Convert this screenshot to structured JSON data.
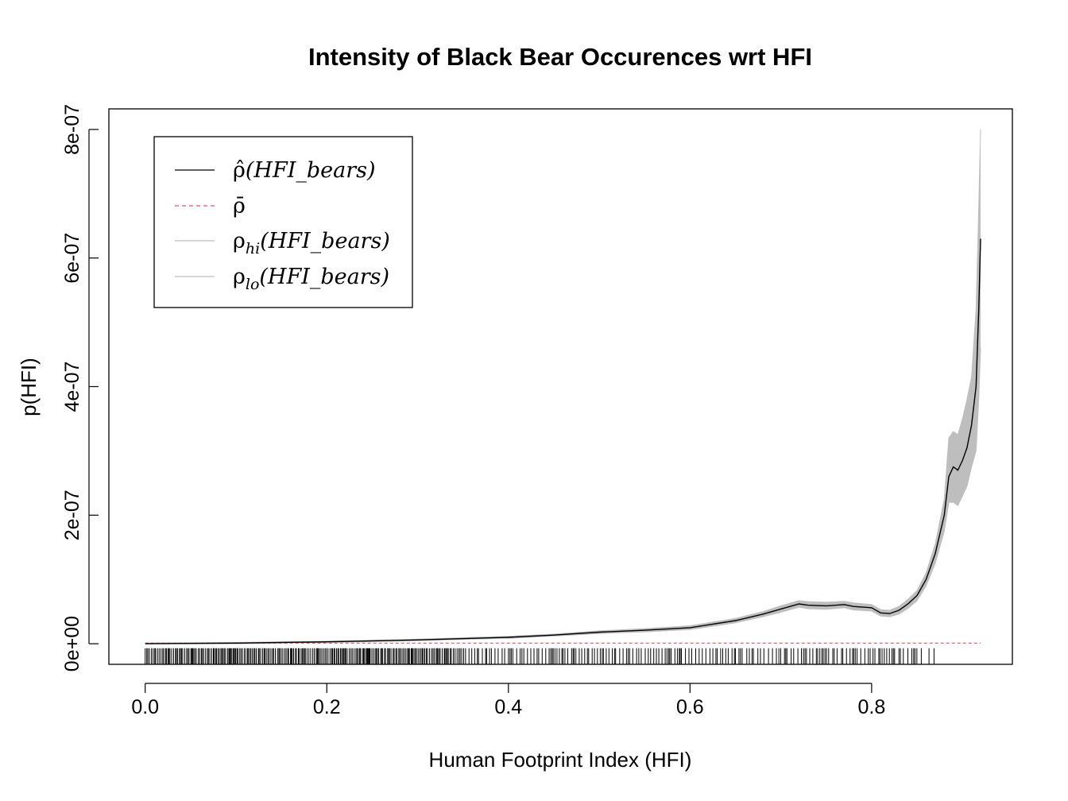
{
  "chart_data": {
    "type": "line",
    "title": "Intensity of Black Bear Occurences wrt HFI",
    "xlabel": "Human Footprint Index (HFI)",
    "ylabel": "p(HFI)",
    "xlim": [
      -0.04,
      0.955
    ],
    "ylim": [
      -3.2e-08,
      8.32e-07
    ],
    "x_ticks": [
      0.0,
      0.2,
      0.4,
      0.6,
      0.8
    ],
    "x_tick_labels": [
      "0.0",
      "0.2",
      "0.4",
      "0.6",
      "0.8"
    ],
    "y_ticks": [
      0,
      2e-07,
      4e-07,
      6e-07,
      8e-07
    ],
    "y_tick_labels": [
      "0e+00",
      "2e-07",
      "4e-07",
      "6e-07",
      "8e-07"
    ],
    "grid": false,
    "legend_position": "top-left",
    "legend": [
      {
        "base": "ρ̂",
        "sub": "",
        "arg": "(HFI_bears)",
        "style": "solid",
        "color": "#000000"
      },
      {
        "base": "ρ̄",
        "sub": "",
        "arg": "",
        "style": "dashed",
        "color": "#DF536B"
      },
      {
        "base": "ρ",
        "sub": "hi",
        "arg": "(HFI_bears)",
        "style": "solid",
        "color": "#BEBEBE"
      },
      {
        "base": "ρ",
        "sub": "lo",
        "arg": "(HFI_bears)",
        "style": "solid",
        "color": "#BEBEBE"
      }
    ],
    "series": [
      {
        "name": "ρ̂(HFI_bears)",
        "color": "#000000",
        "x": [
          0.0,
          0.1,
          0.2,
          0.3,
          0.4,
          0.45,
          0.5,
          0.55,
          0.6,
          0.65,
          0.68,
          0.7,
          0.72,
          0.73,
          0.75,
          0.77,
          0.78,
          0.8,
          0.81,
          0.82,
          0.83,
          0.84,
          0.85,
          0.86,
          0.87,
          0.88,
          0.885,
          0.89,
          0.895,
          0.9,
          0.905,
          0.91,
          0.915,
          0.918,
          0.92
        ],
        "y": [
          0,
          1e-09,
          3e-09,
          6e-09,
          1e-08,
          1.35e-08,
          1.8e-08,
          2.1e-08,
          2.5e-08,
          3.6e-08,
          4.6e-08,
          5.4e-08,
          6.2e-08,
          6e-08,
          5.9e-08,
          6.1e-08,
          5.8e-08,
          5.6e-08,
          4.8e-08,
          4.7e-08,
          5.2e-08,
          6.2e-08,
          7.5e-08,
          1e-07,
          1.4e-07,
          2e-07,
          2.6e-07,
          2.75e-07,
          2.7e-07,
          2.85e-07,
          3.05e-07,
          3.4e-07,
          4e-07,
          5.2e-07,
          6.3e-07
        ]
      },
      {
        "name": "ρ_hi(HFI_bears)",
        "color": "#BEBEBE",
        "x": [
          0.0,
          0.1,
          0.2,
          0.3,
          0.4,
          0.45,
          0.5,
          0.55,
          0.6,
          0.65,
          0.68,
          0.7,
          0.72,
          0.73,
          0.75,
          0.77,
          0.78,
          0.8,
          0.81,
          0.82,
          0.83,
          0.84,
          0.85,
          0.86,
          0.87,
          0.88,
          0.885,
          0.89,
          0.895,
          0.9,
          0.905,
          0.91,
          0.915,
          0.918,
          0.92
        ],
        "y": [
          1e-09,
          2e-09,
          4e-09,
          7e-09,
          1.15e-08,
          1.5e-08,
          2e-08,
          2.35e-08,
          2.8e-08,
          3.95e-08,
          5e-08,
          5.9e-08,
          6.7e-08,
          6.55e-08,
          6.45e-08,
          6.6e-08,
          6.35e-08,
          6.1e-08,
          5.3e-08,
          5.2e-08,
          5.8e-08,
          6.9e-08,
          8.3e-08,
          1.1e-07,
          1.55e-07,
          2.25e-07,
          3.2e-07,
          3.3e-07,
          3.25e-07,
          3.5e-07,
          3.8e-07,
          4.15e-07,
          5.2e-07,
          6.8e-07,
          8e-07
        ]
      },
      {
        "name": "ρ_lo(HFI_bears)",
        "color": "#BEBEBE",
        "x": [
          0.0,
          0.1,
          0.2,
          0.3,
          0.4,
          0.45,
          0.5,
          0.55,
          0.6,
          0.65,
          0.68,
          0.7,
          0.72,
          0.73,
          0.75,
          0.77,
          0.78,
          0.8,
          0.81,
          0.82,
          0.83,
          0.84,
          0.85,
          0.86,
          0.87,
          0.88,
          0.885,
          0.89,
          0.895,
          0.9,
          0.905,
          0.91,
          0.915,
          0.918,
          0.92
        ],
        "y": [
          0,
          0,
          2e-09,
          5e-09,
          8.5e-09,
          1.2e-08,
          1.6e-08,
          1.85e-08,
          2.2e-08,
          3.25e-08,
          4.2e-08,
          4.9e-08,
          5.7e-08,
          5.45e-08,
          5.35e-08,
          5.6e-08,
          5.25e-08,
          5.1e-08,
          4.3e-08,
          4.2e-08,
          4.6e-08,
          5.5e-08,
          6.7e-08,
          9e-08,
          1.25e-07,
          1.75e-07,
          2.2e-07,
          2.2e-07,
          2.15e-07,
          2.3e-07,
          2.45e-07,
          2.75e-07,
          3e-07,
          3.8e-07,
          4.6e-07
        ]
      },
      {
        "name": "ρ̄",
        "color": "#DF536B",
        "x": [
          0.0,
          0.92
        ],
        "y": [
          1e-09,
          1e-09
        ]
      }
    ]
  }
}
